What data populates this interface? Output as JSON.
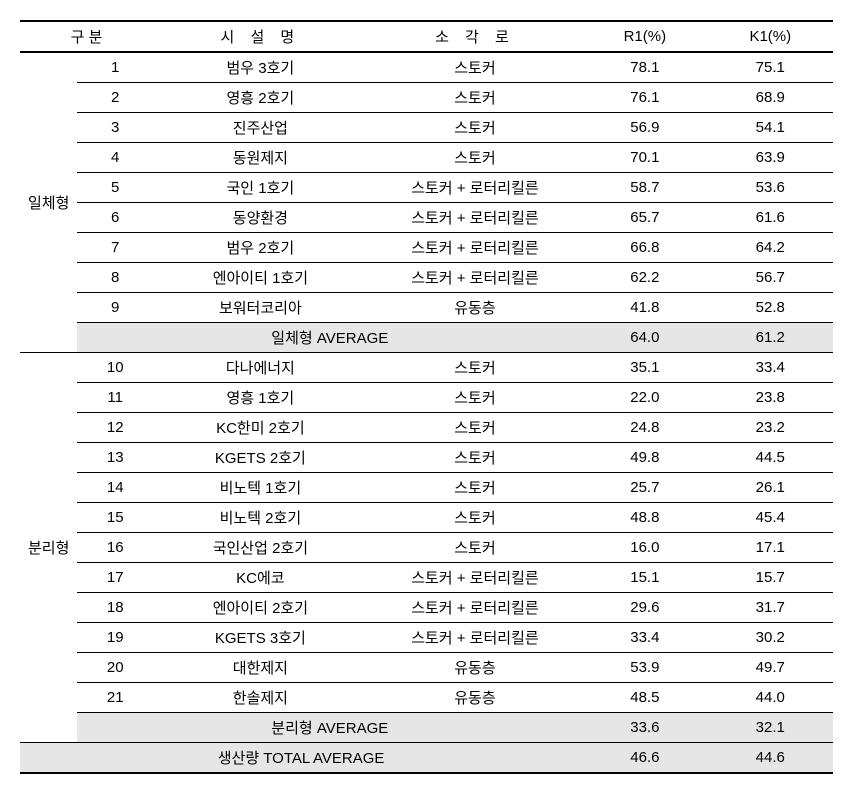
{
  "headers": {
    "category": "구 분",
    "facility": "시 설 명",
    "incinerator": "소 각 로",
    "r1": "R1(%)",
    "k1": "K1(%)"
  },
  "groups": [
    {
      "label": "일체형",
      "rows": [
        {
          "num": "1",
          "name": "범우 3호기",
          "inc": "스토커",
          "r1": "78.1",
          "k1": "75.1"
        },
        {
          "num": "2",
          "name": "영흥 2호기",
          "inc": "스토커",
          "r1": "76.1",
          "k1": "68.9"
        },
        {
          "num": "3",
          "name": "진주산업",
          "inc": "스토커",
          "r1": "56.9",
          "k1": "54.1"
        },
        {
          "num": "4",
          "name": "동원제지",
          "inc": "스토커",
          "r1": "70.1",
          "k1": "63.9"
        },
        {
          "num": "5",
          "name": "국인 1호기",
          "inc": "스토커 + 로터리킬른",
          "r1": "58.7",
          "k1": "53.6"
        },
        {
          "num": "6",
          "name": "동양환경",
          "inc": "스토커 + 로터리킬른",
          "r1": "65.7",
          "k1": "61.6"
        },
        {
          "num": "7",
          "name": "범우 2호기",
          "inc": "스토커 + 로터리킬른",
          "r1": "66.8",
          "k1": "64.2"
        },
        {
          "num": "8",
          "name": "엔아이티 1호기",
          "inc": "스토커 + 로터리킬른",
          "r1": "62.2",
          "k1": "56.7"
        },
        {
          "num": "9",
          "name": "보워터코리아",
          "inc": "유동층",
          "r1": "41.8",
          "k1": "52.8"
        }
      ],
      "avg": {
        "label": "일체형 AVERAGE",
        "r1": "64.0",
        "k1": "61.2"
      }
    },
    {
      "label": "분리형",
      "rows": [
        {
          "num": "10",
          "name": "다나에너지",
          "inc": "스토커",
          "r1": "35.1",
          "k1": "33.4"
        },
        {
          "num": "11",
          "name": "영흥 1호기",
          "inc": "스토커",
          "r1": "22.0",
          "k1": "23.8"
        },
        {
          "num": "12",
          "name": "KC한미 2호기",
          "inc": "스토커",
          "r1": "24.8",
          "k1": "23.2"
        },
        {
          "num": "13",
          "name": "KGETS 2호기",
          "inc": "스토커",
          "r1": "49.8",
          "k1": "44.5"
        },
        {
          "num": "14",
          "name": "비노텍 1호기",
          "inc": "스토커",
          "r1": "25.7",
          "k1": "26.1"
        },
        {
          "num": "15",
          "name": "비노텍 2호기",
          "inc": "스토커",
          "r1": "48.8",
          "k1": "45.4"
        },
        {
          "num": "16",
          "name": "국인산업 2호기",
          "inc": "스토커",
          "r1": "16.0",
          "k1": "17.1"
        },
        {
          "num": "17",
          "name": "KC에코",
          "inc": "스토커 + 로터리킬른",
          "r1": "15.1",
          "k1": "15.7"
        },
        {
          "num": "18",
          "name": "엔아이티 2호기",
          "inc": "스토커 + 로터리킬른",
          "r1": "29.6",
          "k1": "31.7"
        },
        {
          "num": "19",
          "name": "KGETS 3호기",
          "inc": "스토커 + 로터리킬른",
          "r1": "33.4",
          "k1": "30.2"
        },
        {
          "num": "20",
          "name": "대한제지",
          "inc": "유동층",
          "r1": "53.9",
          "k1": "49.7"
        },
        {
          "num": "21",
          "name": "한솔제지",
          "inc": "유동층",
          "r1": "48.5",
          "k1": "44.0"
        }
      ],
      "avg": {
        "label": "분리형 AVERAGE",
        "r1": "33.6",
        "k1": "32.1"
      }
    }
  ],
  "total": {
    "label": "생산량 TOTAL AVERAGE",
    "r1": "46.6",
    "k1": "44.6"
  },
  "style": {
    "background": "#ffffff",
    "avg_bg": "#e6e6e6",
    "border_color": "#000000",
    "font_size": 15
  }
}
